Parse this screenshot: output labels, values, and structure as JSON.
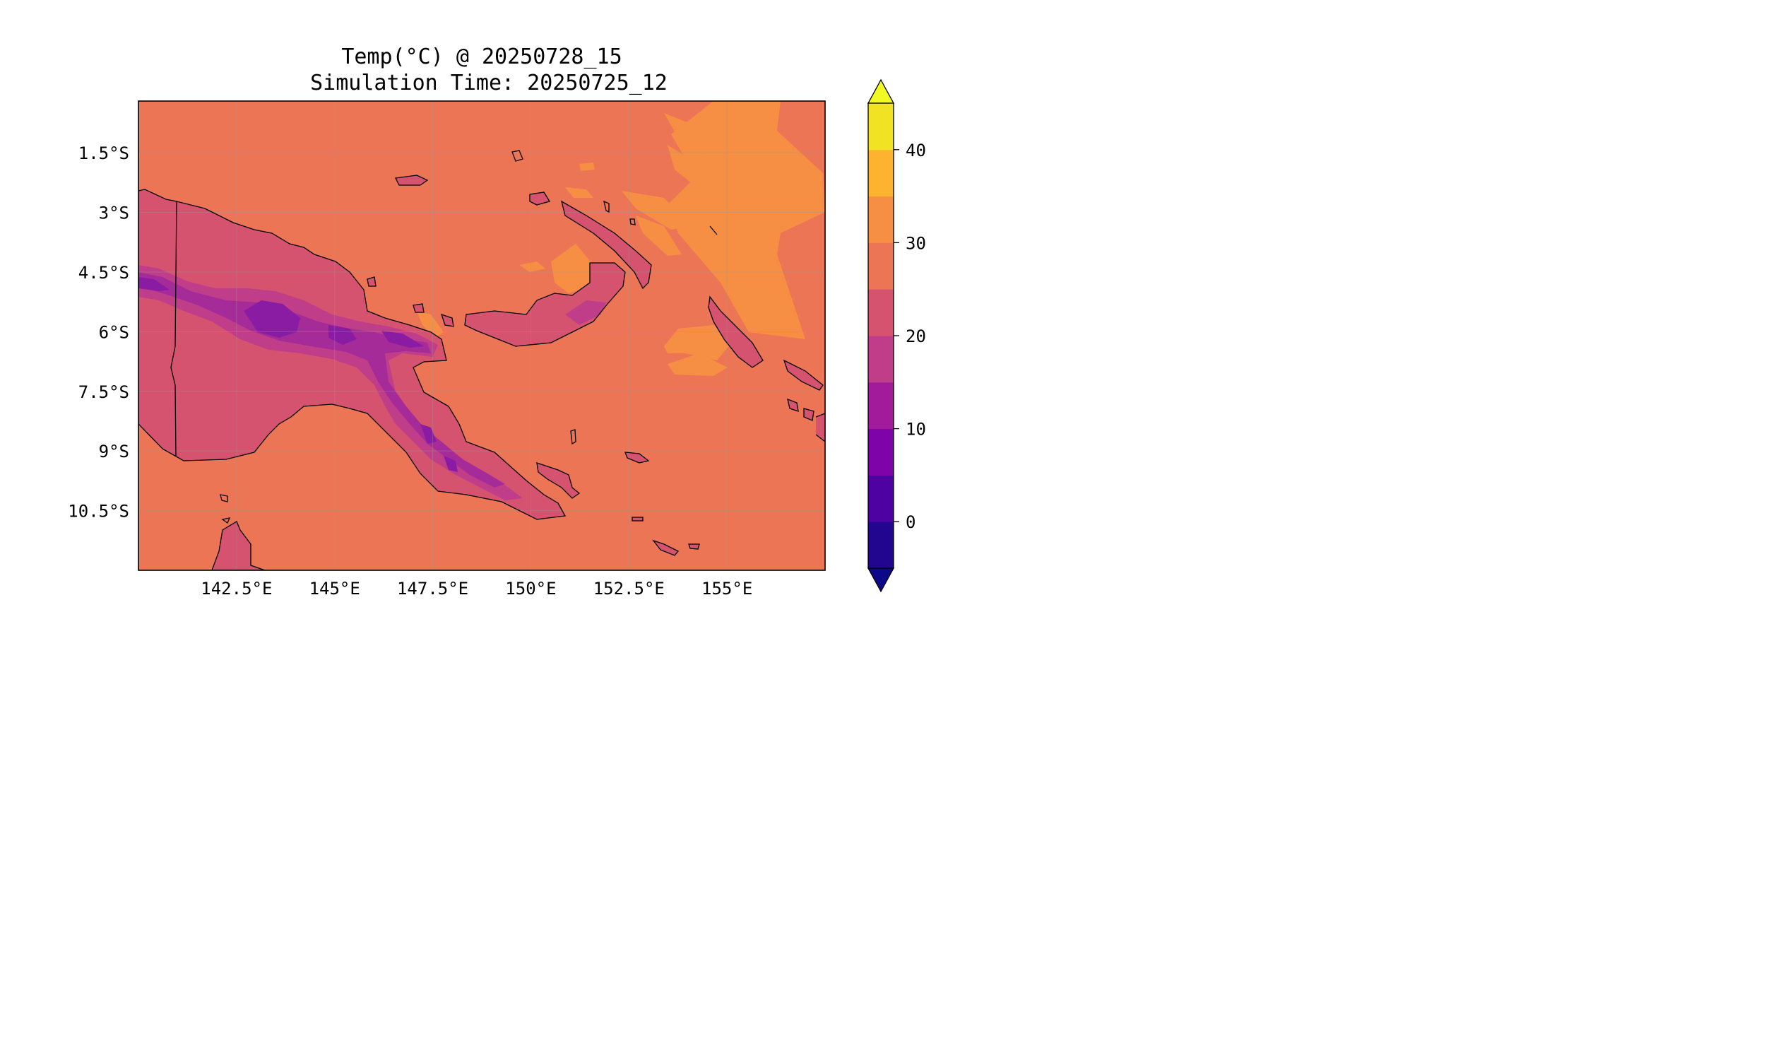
{
  "title": {
    "line1": "Temp(°C) @ 20250728_15",
    "line2": "Simulation Time: 20250725_12"
  },
  "map": {
    "lon_range": [
      140.0,
      157.5
    ],
    "lat_range": [
      -12.0,
      -0.2
    ],
    "lon_ticks": [
      {
        "value": 142.5,
        "label": "142.5°E"
      },
      {
        "value": 145.0,
        "label": "145°E"
      },
      {
        "value": 147.5,
        "label": "147.5°E"
      },
      {
        "value": 150.0,
        "label": "150°E"
      },
      {
        "value": 152.5,
        "label": "152.5°E"
      },
      {
        "value": 155.0,
        "label": "155°E"
      }
    ],
    "lat_ticks": [
      {
        "value": -1.5,
        "label": "1.5°S"
      },
      {
        "value": -3.0,
        "label": "3°S"
      },
      {
        "value": -4.5,
        "label": "4.5°S"
      },
      {
        "value": -6.0,
        "label": "6°S"
      },
      {
        "value": -7.5,
        "label": "7.5°S"
      },
      {
        "value": -9.0,
        "label": "9°S"
      },
      {
        "value": -10.5,
        "label": "10.5°S"
      }
    ],
    "gridlines": true,
    "ocean_color": "#ec7556",
    "region_colors": {
      "warm_30_35": "#f68f43",
      "land_20_25": "#d5536f",
      "land_15_20": "#c03e89",
      "land_10_15": "#a52c98",
      "land_5_10": "#8a1ba3"
    }
  },
  "colorbar": {
    "min": -5,
    "max": 45,
    "bins": [
      {
        "from": -5,
        "to": 0,
        "color": "#230690"
      },
      {
        "from": 0,
        "to": 5,
        "color": "#4e02a2"
      },
      {
        "from": 5,
        "to": 10,
        "color": "#7e03a8"
      },
      {
        "from": 10,
        "to": 15,
        "color": "#a11b9b"
      },
      {
        "from": 15,
        "to": 20,
        "color": "#c03e89"
      },
      {
        "from": 20,
        "to": 25,
        "color": "#d5536f"
      },
      {
        "from": 25,
        "to": 30,
        "color": "#ec7556"
      },
      {
        "from": 30,
        "to": 35,
        "color": "#f68f43"
      },
      {
        "from": 35,
        "to": 40,
        "color": "#fdb32f"
      },
      {
        "from": 40,
        "to": 45,
        "color": "#f2e224"
      }
    ],
    "under_color": "#0d0887",
    "over_color": "#f0f921",
    "ticks": [
      {
        "value": 0,
        "label": "0"
      },
      {
        "value": 10,
        "label": "10"
      },
      {
        "value": 20,
        "label": "20"
      },
      {
        "value": 30,
        "label": "30"
      },
      {
        "value": 40,
        "label": "40"
      }
    ]
  }
}
